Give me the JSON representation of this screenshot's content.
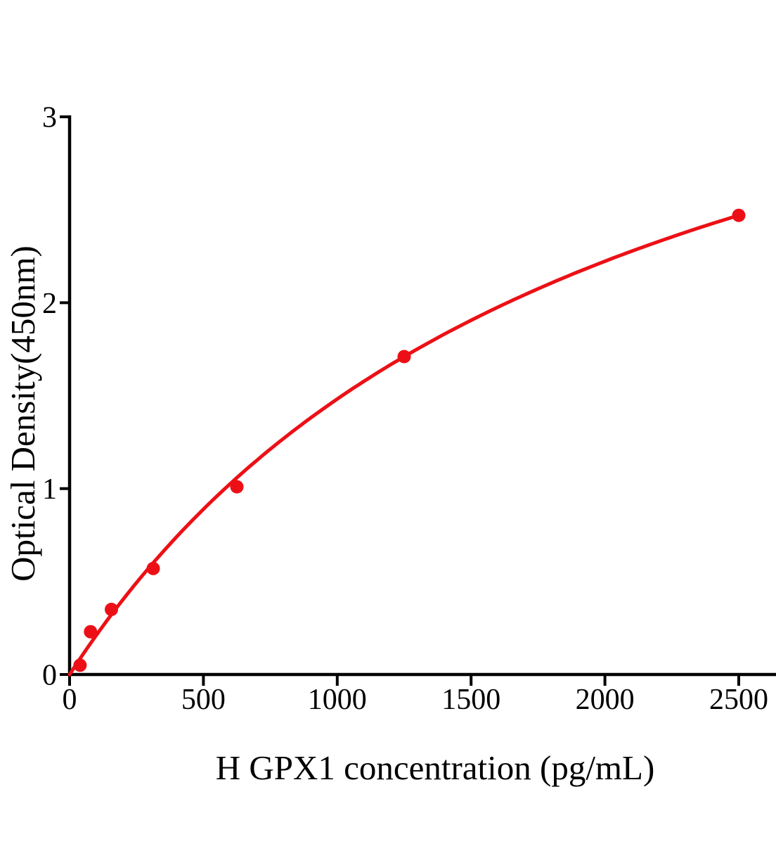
{
  "figure": {
    "background": "#FFFFFF",
    "axis_color": "#000000",
    "accent_color": "#EC1016"
  },
  "chart_data": {
    "type": "scatter",
    "title": "",
    "xlabel": "H GPX1 concentration (pg/mL)",
    "ylabel": "Optical Density(450nm)",
    "x": [
      39.06,
      78.13,
      156.25,
      312.5,
      625,
      1250,
      2500
    ],
    "y": [
      0.05,
      0.23,
      0.35,
      0.57,
      1.01,
      1.71,
      2.47
    ],
    "xlim": [
      0,
      2500
    ],
    "ylim": [
      0,
      3
    ],
    "xticks": [
      0,
      500,
      1000,
      1500,
      2000,
      2500
    ],
    "yticks": [
      0,
      1,
      2,
      3
    ],
    "grid": false,
    "legend": "none",
    "marker_color": "#EC1016",
    "line_color": "#EC1016",
    "fit_curve": {
      "model": "saturation (y = vmax*x/(km+x))",
      "vmax": 4.446,
      "km": 2000,
      "x_start": 0,
      "x_end": 2500
    }
  }
}
